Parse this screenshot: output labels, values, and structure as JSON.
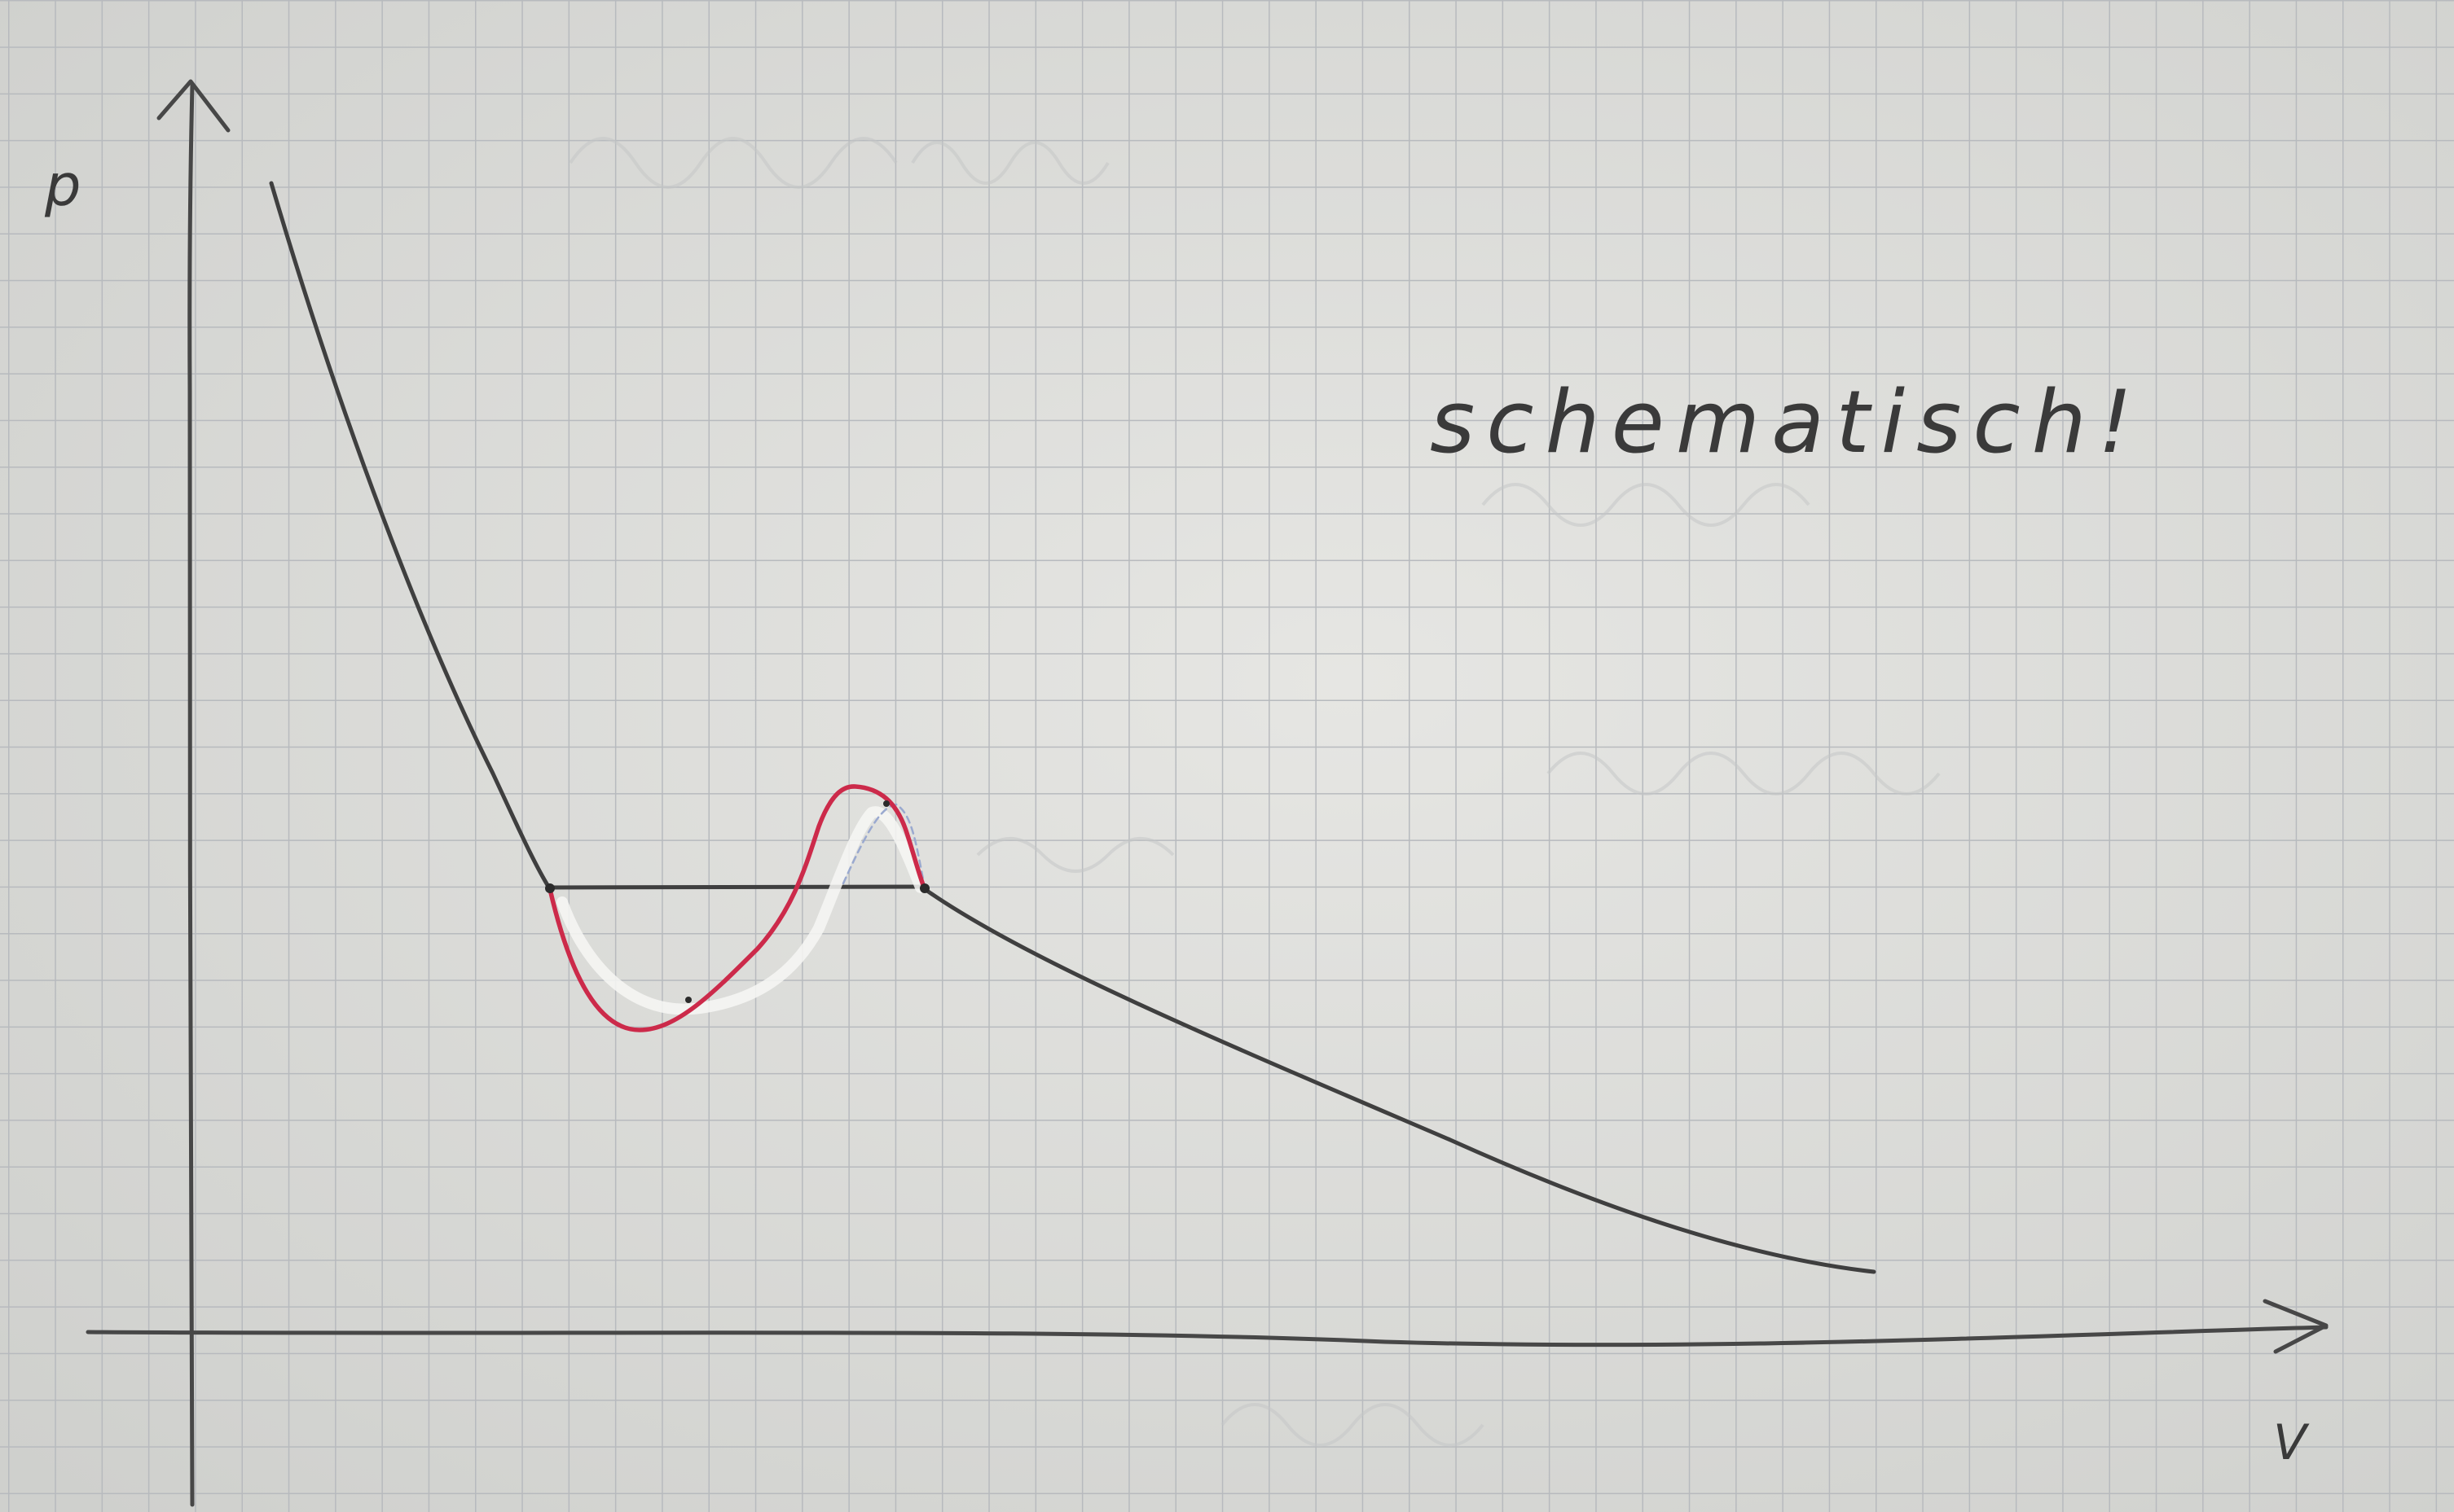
{
  "axes": {
    "y_label": "p",
    "x_label": "V"
  },
  "annotation": "schematisch!",
  "colors": {
    "paper": "#dedede",
    "grid": "#b9bcc0",
    "pencil": "#3f3f3f",
    "red_curve": "#cc2a4a",
    "white_curve": "#f7f7f7",
    "faint_blue_curve": "#9aa9cf"
  },
  "curves": [
    {
      "name": "isotherm",
      "color": "pencil"
    },
    {
      "name": "maxwell-line",
      "color": "pencil"
    },
    {
      "name": "van-der-waals-loop",
      "color": "red_curve"
    },
    {
      "name": "erased-loop",
      "color": "white_curve"
    }
  ]
}
